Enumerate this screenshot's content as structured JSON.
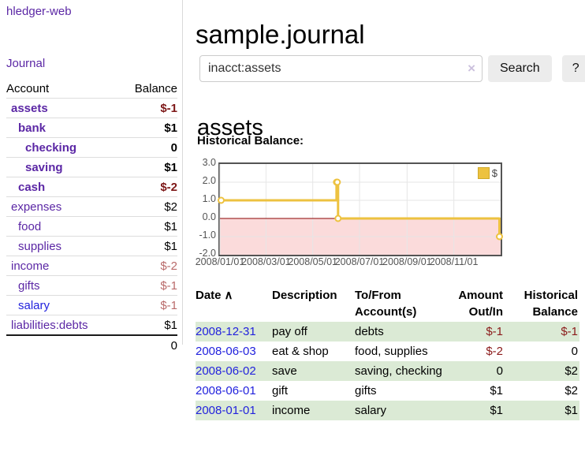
{
  "app": {
    "brand": "hledger-web",
    "nav_journal": "Journal"
  },
  "sidebar": {
    "header": {
      "account": "Account",
      "balance": "Balance"
    },
    "accounts": [
      {
        "name": "assets",
        "depth": 1,
        "bold": true,
        "link_style": "purple",
        "balance": "$-1",
        "balance_class": "neg-strong"
      },
      {
        "name": "bank",
        "depth": 2,
        "bold": true,
        "link_style": "purple",
        "balance": "$1",
        "balance_class": ""
      },
      {
        "name": "checking",
        "depth": 3,
        "bold": true,
        "link_style": "purple",
        "balance": "0",
        "balance_class": ""
      },
      {
        "name": "saving",
        "depth": 3,
        "bold": true,
        "link_style": "purple",
        "balance": "$1",
        "balance_class": ""
      },
      {
        "name": "cash",
        "depth": 2,
        "bold": true,
        "link_style": "purple",
        "balance": "$-2",
        "balance_class": "neg-strong"
      },
      {
        "name": "expenses",
        "depth": 1,
        "bold": false,
        "link_style": "purple",
        "balance": "$2",
        "balance_class": ""
      },
      {
        "name": "food",
        "depth": 2,
        "bold": false,
        "link_style": "purple",
        "balance": "$1",
        "balance_class": ""
      },
      {
        "name": "supplies",
        "depth": 2,
        "bold": false,
        "link_style": "purple",
        "balance": "$1",
        "balance_class": ""
      },
      {
        "name": "income",
        "depth": 1,
        "bold": false,
        "link_style": "purple",
        "balance": "$-2",
        "balance_class": "neg-soft"
      },
      {
        "name": "gifts",
        "depth": 2,
        "bold": false,
        "link_style": "purple",
        "balance": "$-1",
        "balance_class": "neg-soft"
      },
      {
        "name": "salary",
        "depth": 2,
        "bold": false,
        "link_style": "blue",
        "balance": "$-1",
        "balance_class": "neg-soft"
      },
      {
        "name": "liabilities:debts",
        "depth": 1,
        "bold": false,
        "link_style": "purple",
        "balance": "$1",
        "balance_class": ""
      }
    ],
    "total": "0"
  },
  "main": {
    "title": "sample.journal",
    "search": {
      "value": "inacct:assets",
      "clear_icon": "×",
      "button_label": "Search",
      "help_label": "?"
    },
    "account_heading": "assets",
    "chart_label": "Historical Balance:"
  },
  "chart_data": {
    "type": "line",
    "step": true,
    "title": "Historical Balance",
    "series": [
      {
        "name": "$",
        "color": "#edc240",
        "points": [
          {
            "date": "2008-01-01",
            "value": 1.0
          },
          {
            "date": "2008-06-01",
            "value": 2.0
          },
          {
            "date": "2008-06-02",
            "value": 2.0
          },
          {
            "date": "2008-06-03",
            "value": 0.0
          },
          {
            "date": "2008-12-31",
            "value": -1.0
          }
        ]
      }
    ],
    "xlim": [
      "2008/01/01",
      "2009/01/01"
    ],
    "ylim": [
      -2.0,
      3.0
    ],
    "yticks": [
      3.0,
      2.0,
      1.0,
      0.0,
      -1.0,
      -2.0
    ],
    "xticks": [
      "2008/01/01",
      "2008/03/01",
      "2008/05/01",
      "2008/07/01",
      "2008/09/01",
      "2008/11/01"
    ],
    "legend": {
      "label": "$",
      "position": "top-right",
      "swatch_color": "#edc240"
    },
    "grid": true,
    "grid_color": "#e6e6e6",
    "negative_fill_color": "#fbdbdb",
    "zero_line_color": "#8b0000",
    "border_color": "#545454"
  },
  "register": {
    "headers": [
      {
        "label": "Date",
        "sort_icon": "∧"
      },
      {
        "label": "Description"
      },
      {
        "label": "To/From Account(s)"
      },
      {
        "label": "Amount Out/In",
        "numeric": true
      },
      {
        "label": "Historical Balance",
        "numeric": true
      }
    ],
    "rows": [
      {
        "date": "2008-12-31",
        "description": "pay off",
        "accounts": "debts",
        "amount": "$-1",
        "amount_negative": true,
        "balance": "$-1",
        "balance_negative": true
      },
      {
        "date": "2008-06-03",
        "description": "eat & shop",
        "accounts": "food, supplies",
        "amount": "$-2",
        "amount_negative": true,
        "balance": "0",
        "balance_negative": false
      },
      {
        "date": "2008-06-02",
        "description": "save",
        "accounts": "saving, checking",
        "amount": "0",
        "amount_negative": false,
        "balance": "$2",
        "balance_negative": false
      },
      {
        "date": "2008-06-01",
        "description": "gift",
        "accounts": "gifts",
        "amount": "$1",
        "amount_negative": false,
        "balance": "$2",
        "balance_negative": false
      },
      {
        "date": "2008-01-01",
        "description": "income",
        "accounts": "salary",
        "amount": "$1",
        "amount_negative": false,
        "balance": "$1",
        "balance_negative": false
      }
    ]
  }
}
